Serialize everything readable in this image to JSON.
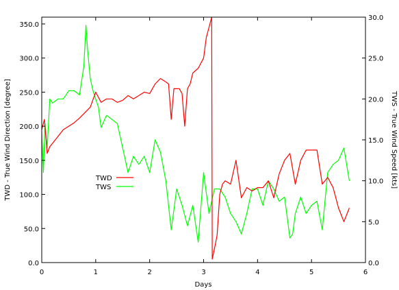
{
  "chart_data": {
    "type": "line",
    "title": "",
    "xlabel": "Days",
    "ylabel": "TWD - True Wind Direction [degree]",
    "y2label": "TWS - True Wind Speed [kts]",
    "xlim": [
      0,
      6
    ],
    "ylim": [
      0,
      360
    ],
    "y2lim": [
      0,
      30
    ],
    "grid": false,
    "legend_position": "center-left",
    "x_ticks": [
      "0",
      "1",
      "2",
      "3",
      "4",
      "5",
      "6"
    ],
    "y_ticks": [
      "0.0",
      "50.0",
      "100.0",
      "150.0",
      "200.0",
      "250.0",
      "300.0",
      "350.0"
    ],
    "y2_ticks": [
      "0.0",
      "5.0",
      "10.0",
      "15.0",
      "20.0",
      "25.0",
      "30.0"
    ],
    "series": [
      {
        "name": "TWD",
        "axis": "left",
        "color": "#ff0000",
        "x": [
          0,
          0.05,
          0.1,
          0.15,
          0.2,
          0.3,
          0.4,
          0.5,
          0.6,
          0.7,
          0.8,
          0.9,
          1.0,
          1.1,
          1.2,
          1.3,
          1.4,
          1.5,
          1.6,
          1.7,
          1.8,
          1.9,
          2.0,
          2.1,
          2.2,
          2.3,
          2.35,
          2.4,
          2.45,
          2.5,
          2.55,
          2.6,
          2.65,
          2.7,
          2.75,
          2.8,
          2.9,
          3.0,
          3.05,
          3.1,
          3.15,
          3.16,
          3.2,
          3.25,
          3.3,
          3.35,
          3.4,
          3.5,
          3.6,
          3.7,
          3.8,
          3.9,
          4.0,
          4.1,
          4.2,
          4.3,
          4.4,
          4.5,
          4.6,
          4.7,
          4.8,
          4.9,
          5.0,
          5.1,
          5.2,
          5.3,
          5.4,
          5.5,
          5.6,
          5.7
        ],
        "values": [
          195,
          210,
          160,
          170,
          175,
          185,
          195,
          200,
          205,
          212,
          220,
          228,
          250,
          235,
          240,
          240,
          235,
          238,
          245,
          240,
          245,
          250,
          248,
          262,
          270,
          265,
          262,
          210,
          255,
          255,
          255,
          248,
          200,
          255,
          262,
          278,
          285,
          300,
          330,
          345,
          360,
          5,
          20,
          40,
          100,
          115,
          120,
          115,
          150,
          95,
          110,
          105,
          110,
          110,
          120,
          95,
          130,
          150,
          160,
          115,
          150,
          165,
          165,
          165,
          115,
          125,
          110,
          80,
          60,
          80
        ]
      },
      {
        "name": "TWS",
        "axis": "right",
        "color": "#00ff00",
        "x": [
          0,
          0.03,
          0.06,
          0.1,
          0.15,
          0.2,
          0.3,
          0.4,
          0.5,
          0.6,
          0.7,
          0.78,
          0.82,
          0.85,
          0.9,
          0.95,
          1.0,
          1.05,
          1.1,
          1.2,
          1.3,
          1.4,
          1.5,
          1.6,
          1.7,
          1.8,
          1.9,
          2.0,
          2.1,
          2.2,
          2.3,
          2.4,
          2.5,
          2.6,
          2.7,
          2.8,
          2.9,
          3.0,
          3.1,
          3.2,
          3.3,
          3.4,
          3.5,
          3.6,
          3.7,
          3.8,
          3.9,
          4.0,
          4.1,
          4.2,
          4.3,
          4.4,
          4.5,
          4.6,
          4.65,
          4.7,
          4.8,
          4.9,
          5.0,
          5.1,
          5.2,
          5.3,
          5.4,
          5.5,
          5.6,
          5.7
        ],
        "values": [
          16,
          11,
          17,
          14,
          20,
          19.5,
          20,
          20,
          21,
          21,
          20.5,
          24,
          29,
          26,
          22.5,
          21,
          20,
          19,
          16.5,
          18,
          17.5,
          17,
          14,
          11,
          13,
          12,
          13,
          11,
          15,
          13.5,
          10,
          4,
          9,
          7,
          4.5,
          7,
          2.5,
          11,
          6,
          9,
          9,
          8,
          6,
          5,
          3.5,
          6,
          9,
          9,
          7,
          10,
          9,
          7.5,
          8,
          3,
          3.5,
          6,
          8,
          6,
          7,
          7.5,
          4,
          11,
          12,
          12.5,
          14,
          10
        ]
      }
    ]
  }
}
